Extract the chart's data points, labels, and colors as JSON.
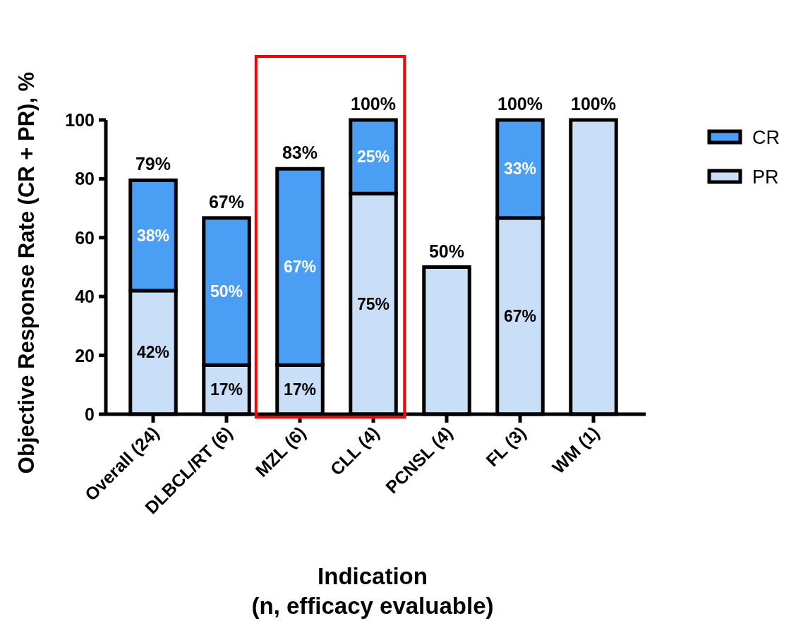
{
  "chart_data": {
    "type": "bar",
    "stacked": true,
    "ylabel": "Objective Response Rate (CR + PR), %",
    "xlabel": "Indication\n(n, efficacy evaluable)",
    "categories": [
      "Overall (24)",
      "DLBCL/RT (6)",
      "MZL (6)",
      "CLL (4)",
      "PCNSL (4)",
      "FL (3)",
      "WM (1)"
    ],
    "series": [
      {
        "name": "PR",
        "color": "#c9dff7",
        "values": [
          42,
          16.7,
          16.7,
          75,
          50,
          66.7,
          100
        ],
        "value_labels": [
          "42%",
          "17%",
          "17%",
          "75%",
          null,
          "67%",
          null
        ]
      },
      {
        "name": "CR",
        "color": "#4a9ff5",
        "values": [
          37.5,
          50,
          66.7,
          25,
          null,
          33.3,
          null
        ],
        "value_labels": [
          "38%",
          "50%",
          "67%",
          "25%",
          null,
          "33%",
          null
        ]
      }
    ],
    "totals": [
      "79%",
      "67%",
      "83%",
      "100%",
      "50%",
      "100%",
      "100%"
    ],
    "ylim": [
      0,
      100
    ],
    "yticks": [
      0,
      20,
      40,
      60,
      80,
      100
    ],
    "grid": false,
    "legend": "top right"
  }
}
